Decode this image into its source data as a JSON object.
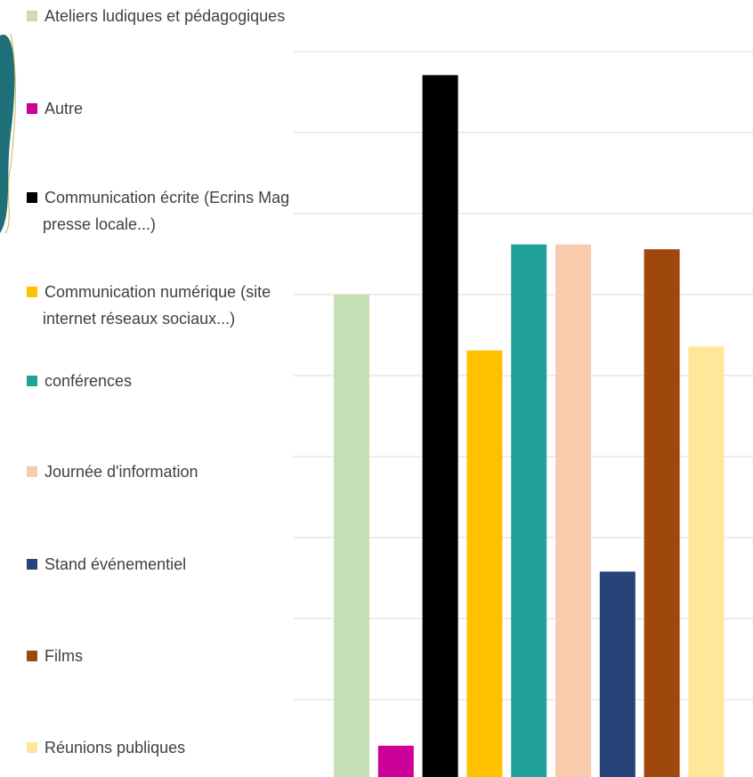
{
  "chart_data": {
    "type": "bar",
    "categories": [
      "Ateliers ludiques et pédagogiques",
      "Autre",
      "Communication écrite (Ecrins Mag presse locale...)",
      "Communication numérique (site internet réseaux sociaux...)",
      "conférences",
      "Journée d'information",
      "Stand événementiel",
      "Films",
      "Réunions publiques"
    ],
    "values": [
      6.0,
      0.43,
      8.71,
      5.31,
      6.62,
      6.62,
      2.58,
      6.56,
      5.36
    ],
    "colors": [
      "#c5e0b4",
      "#cc0099",
      "#000000",
      "#ffc000",
      "#21a19c",
      "#f8cbad",
      "#264478",
      "#9e480e",
      "#ffe699"
    ],
    "ylim": [
      0,
      9
    ],
    "gridlines": [
      1,
      2,
      3,
      4,
      5,
      6,
      7,
      8,
      9
    ],
    "grid": true,
    "legend": "left"
  }
}
